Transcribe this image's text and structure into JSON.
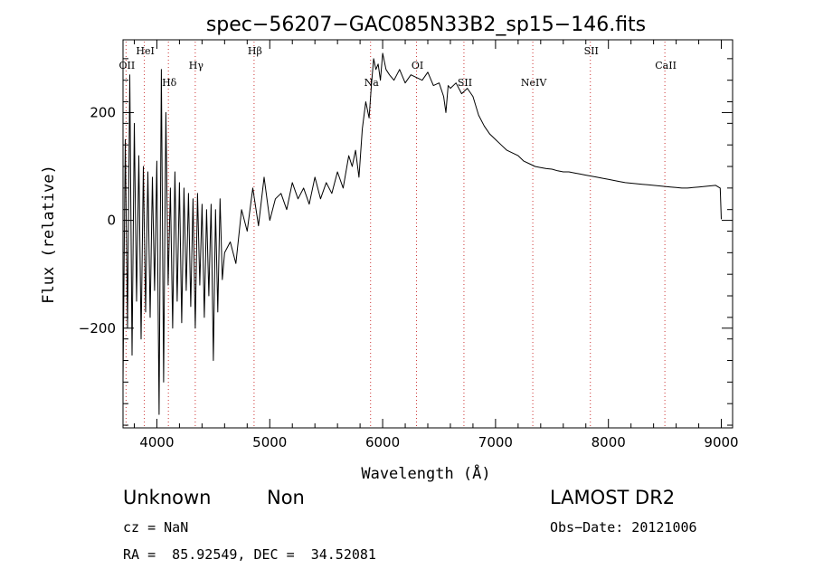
{
  "chart_data": {
    "type": "line",
    "title": "spec−56207−GAC085N33B2_sp15−146.fits",
    "xlabel": "Wavelength (Å)",
    "ylabel": "Flux (relative)",
    "xlim": [
      3700,
      9100
    ],
    "ylim": [
      -385,
      335
    ],
    "xticks": [
      4000,
      5000,
      6000,
      7000,
      8000,
      9000
    ],
    "yticks": [
      -200,
      0,
      200
    ],
    "x_ticklabels": [
      "4000",
      "5000",
      "6000",
      "7000",
      "8000",
      "9000"
    ],
    "y_ticklabels": [
      "−200",
      "0",
      "200"
    ],
    "grid": false,
    "line_color": "#000000",
    "marker_color": "#cc3333",
    "series": [
      {
        "x": [
          3700,
          3720,
          3740,
          3760,
          3780,
          3800,
          3820,
          3840,
          3860,
          3880,
          3900,
          3920,
          3940,
          3960,
          3980,
          4000,
          4020,
          4040,
          4060,
          4080,
          4100,
          4120,
          4140,
          4160,
          4180,
          4200,
          4220,
          4240,
          4260,
          4280,
          4300,
          4320,
          4340,
          4360,
          4380,
          4400,
          4420,
          4440,
          4460,
          4480,
          4500,
          4520,
          4540,
          4560,
          4580,
          4600,
          4650,
          4700,
          4750,
          4800,
          4850,
          4900,
          4950,
          5000,
          5050,
          5100,
          5150,
          5200,
          5250,
          5300,
          5350,
          5400,
          5450,
          5500,
          5550,
          5600,
          5650,
          5700,
          5730,
          5760,
          5790,
          5820,
          5850,
          5880,
          5900,
          5920,
          5940,
          5960,
          5980,
          6000,
          6030,
          6060,
          6100,
          6150,
          6200,
          6250,
          6300,
          6350,
          6400,
          6450,
          6500,
          6540,
          6560,
          6580,
          6600,
          6650,
          6700,
          6750,
          6800,
          6850,
          6900,
          6950,
          7000,
          7050,
          7100,
          7150,
          7200,
          7250,
          7300,
          7350,
          7400,
          7450,
          7500,
          7550,
          7600,
          7650,
          7700,
          7750,
          7800,
          7850,
          7900,
          7950,
          8000,
          8050,
          8100,
          8150,
          8200,
          8250,
          8300,
          8350,
          8400,
          8450,
          8500,
          8550,
          8600,
          8650,
          8700,
          8750,
          8800,
          8850,
          8900,
          8950,
          8990,
          9000
        ],
        "y": [
          -300,
          150,
          -200,
          270,
          -250,
          180,
          -150,
          120,
          -220,
          100,
          -170,
          90,
          -180,
          80,
          -130,
          110,
          -360,
          280,
          -300,
          200,
          -120,
          60,
          -200,
          90,
          -150,
          70,
          -190,
          60,
          -130,
          50,
          -160,
          40,
          -200,
          50,
          -120,
          30,
          -180,
          20,
          -140,
          30,
          -260,
          20,
          -170,
          40,
          -110,
          -60,
          -40,
          -80,
          20,
          -20,
          60,
          -10,
          80,
          0,
          40,
          50,
          20,
          70,
          40,
          60,
          30,
          80,
          40,
          70,
          50,
          90,
          60,
          120,
          100,
          130,
          80,
          170,
          220,
          190,
          250,
          300,
          280,
          290,
          260,
          310,
          280,
          270,
          260,
          280,
          255,
          270,
          265,
          260,
          275,
          250,
          255,
          230,
          200,
          250,
          245,
          255,
          235,
          245,
          230,
          195,
          175,
          160,
          150,
          140,
          130,
          125,
          120,
          110,
          105,
          100,
          98,
          96,
          95,
          92,
          90,
          90,
          88,
          86,
          84,
          82,
          80,
          78,
          76,
          74,
          72,
          70,
          69,
          68,
          67,
          66,
          65,
          64,
          63,
          62,
          61,
          60,
          60,
          61,
          62,
          63,
          64,
          65,
          60,
          2
        ]
      }
    ],
    "lines": [
      {
        "label": "OII",
        "wave": 3727,
        "row": 2
      },
      {
        "label": "HeI",
        "wave": 3889,
        "row": 0
      },
      {
        "label": "Hδ",
        "wave": 4102,
        "row": 3
      },
      {
        "label": "Hγ",
        "wave": 4340,
        "row": 2
      },
      {
        "label": "Hβ",
        "wave": 4861,
        "row": 0
      },
      {
        "label": "Na",
        "wave": 5893,
        "row": 3
      },
      {
        "label": "OI",
        "wave": 6300,
        "row": 2
      },
      {
        "label": "SII",
        "wave": 6720,
        "row": 3
      },
      {
        "label": "NeIV",
        "wave": 7330,
        "row": 3
      },
      {
        "label": "SII",
        "wave": 7840,
        "row": 0
      },
      {
        "label": "CaII",
        "wave": 8500,
        "row": 2
      }
    ]
  },
  "footer": {
    "class": "Unknown",
    "subclass": "Non",
    "survey": "LAMOST DR2",
    "cz": "cz = NaN",
    "obs_date": "Obs−Date: 20121006",
    "radec": "RA =  85.92549, DEC =  34.52081"
  }
}
